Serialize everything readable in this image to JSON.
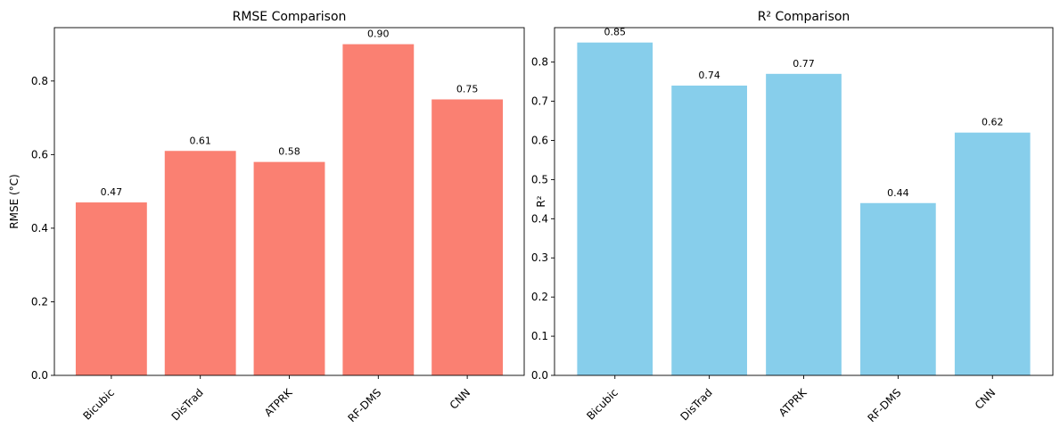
{
  "chart_data": [
    {
      "type": "bar",
      "title": "RMSE Comparison",
      "xlabel": "",
      "ylabel": "RMSE (°C)",
      "categories": [
        "Bicubic",
        "DisTrad",
        "ATPRK",
        "RF-DMS",
        "CNN"
      ],
      "values": [
        0.47,
        0.61,
        0.58,
        0.9,
        0.75
      ],
      "value_labels": [
        "0.47",
        "0.61",
        "0.58",
        "0.90",
        "0.75"
      ],
      "ylim": [
        0,
        0.945
      ],
      "yticks": [
        0.0,
        0.2,
        0.4,
        0.6,
        0.8
      ],
      "ytick_labels": [
        "0.0",
        "0.2",
        "0.4",
        "0.6",
        "0.8"
      ],
      "color": "#FA8072",
      "grid": false
    },
    {
      "type": "bar",
      "title": "R² Comparison",
      "xlabel": "",
      "ylabel": "R²",
      "categories": [
        "Bicubic",
        "DisTrad",
        "ATPRK",
        "RF-DMS",
        "CNN"
      ],
      "values": [
        0.85,
        0.74,
        0.77,
        0.44,
        0.62
      ],
      "value_labels": [
        "0.85",
        "0.74",
        "0.77",
        "0.44",
        "0.62"
      ],
      "ylim": [
        0,
        0.888
      ],
      "yticks": [
        0.0,
        0.1,
        0.2,
        0.3,
        0.4,
        0.5,
        0.6,
        0.7,
        0.8
      ],
      "ytick_labels": [
        "0.0",
        "0.1",
        "0.2",
        "0.3",
        "0.4",
        "0.5",
        "0.6",
        "0.7",
        "0.8"
      ],
      "color": "#87CEEB",
      "grid": false
    }
  ]
}
